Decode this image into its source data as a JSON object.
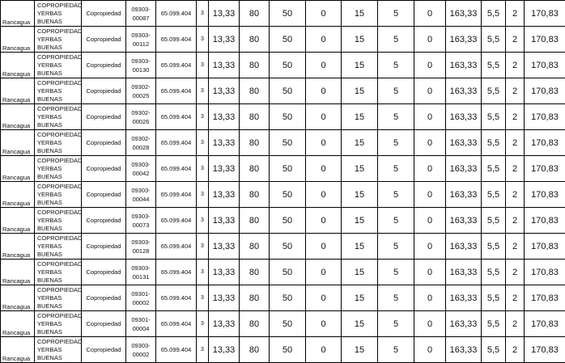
{
  "rows": [
    {
      "comuna": "Rancagua",
      "nombre": "COPROPIEDAD YERBAS BUENAS",
      "tipo": "Copropiedad",
      "rol": "09303-00087",
      "avaluo": "65.099.404",
      "n": "3",
      "v": [
        "13,33",
        "80",
        "50",
        "0",
        "15",
        "5",
        "0",
        "163,33",
        "5,5",
        "2",
        "170,83"
      ]
    },
    {
      "comuna": "Rancagua",
      "nombre": "COPROPIEDAD YERBAS BUENAS",
      "tipo": "Copropiedad",
      "rol": "09303-00112",
      "avaluo": "65.099.404",
      "n": "3",
      "v": [
        "13,33",
        "80",
        "50",
        "0",
        "15",
        "5",
        "0",
        "163,33",
        "5,5",
        "2",
        "170,83"
      ]
    },
    {
      "comuna": "Rancagua",
      "nombre": "COPROPIEDAD YERBAS BUENAS",
      "tipo": "Copropiedad",
      "rol": "09303-00130",
      "avaluo": "65.099.404",
      "n": "3",
      "v": [
        "13,33",
        "80",
        "50",
        "0",
        "15",
        "5",
        "0",
        "163,33",
        "5,5",
        "2",
        "170,83"
      ]
    },
    {
      "comuna": "Rancagua",
      "nombre": "COPROPIEDAD YERBAS BUENAS",
      "tipo": "Copropiedad",
      "rol": "09302-00025",
      "avaluo": "65.099.404",
      "n": "3",
      "v": [
        "13,33",
        "80",
        "50",
        "0",
        "15",
        "5",
        "0",
        "163,33",
        "5,5",
        "2",
        "170,83"
      ]
    },
    {
      "comuna": "Rancagua",
      "nombre": "COPROPIEDAD YERBAS BUENAS",
      "tipo": "Copropiedad",
      "rol": "09302-00026",
      "avaluo": "65.099.404",
      "n": "3",
      "v": [
        "13,33",
        "80",
        "50",
        "0",
        "15",
        "5",
        "0",
        "163,33",
        "5,5",
        "2",
        "170,83"
      ]
    },
    {
      "comuna": "Rancagua",
      "nombre": "COPROPIEDAD YERBAS BUENAS",
      "tipo": "Copropiedad",
      "rol": "09302-00028",
      "avaluo": "65.099.404",
      "n": "3",
      "v": [
        "13,33",
        "80",
        "50",
        "0",
        "15",
        "5",
        "0",
        "163,33",
        "5,5",
        "2",
        "170,83"
      ]
    },
    {
      "comuna": "Rancagua",
      "nombre": "COPROPIEDAD YERBAS BUENAS",
      "tipo": "Copropiedad",
      "rol": "09303-00042",
      "avaluo": "65.099.404",
      "n": "3",
      "v": [
        "13,33",
        "80",
        "50",
        "0",
        "15",
        "5",
        "0",
        "163,33",
        "5,5",
        "2",
        "170,83"
      ]
    },
    {
      "comuna": "Rancagua",
      "nombre": "COPROPIEDAD YERBAS BUENAS",
      "tipo": "Copropiedad",
      "rol": "09303-00044",
      "avaluo": "65.099.404",
      "n": "3",
      "v": [
        "13,33",
        "80",
        "50",
        "0",
        "15",
        "5",
        "0",
        "163,33",
        "5,5",
        "2",
        "170,83"
      ]
    },
    {
      "comuna": "Rancagua",
      "nombre": "COPROPIEDAD YERBAS BUENAS",
      "tipo": "Copropiedad",
      "rol": "09303-00073",
      "avaluo": "65.099.404",
      "n": "3",
      "v": [
        "13,33",
        "80",
        "50",
        "0",
        "15",
        "5",
        "0",
        "163,33",
        "5,5",
        "2",
        "170,83"
      ]
    },
    {
      "comuna": "Rancagua",
      "nombre": "COPROPIEDAD YERBAS BUENAS",
      "tipo": "Copropiedad",
      "rol": "09303-00128",
      "avaluo": "65.099.404",
      "n": "3",
      "v": [
        "13,33",
        "80",
        "50",
        "0",
        "15",
        "5",
        "0",
        "163,33",
        "5,5",
        "2",
        "170,83"
      ]
    },
    {
      "comuna": "Rancagua",
      "nombre": "COPROPIEDAD YERBAS BUENAS",
      "tipo": "Copropiedad",
      "rol": "09303-00131",
      "avaluo": "65.099.404",
      "n": "3",
      "v": [
        "13,33",
        "80",
        "50",
        "0",
        "15",
        "5",
        "0",
        "163,33",
        "5,5",
        "2",
        "170,83"
      ]
    },
    {
      "comuna": "Rancagua",
      "nombre": "COPROPIEDAD YERBAS BUENAS",
      "tipo": "Copropiedad",
      "rol": "09301-00002",
      "avaluo": "65.099.404",
      "n": "3",
      "v": [
        "13,33",
        "80",
        "50",
        "0",
        "15",
        "5",
        "0",
        "163,33",
        "5,5",
        "2",
        "170,83"
      ]
    },
    {
      "comuna": "Rancagua",
      "nombre": "COPROPIEDAD YERBAS BUENAS",
      "tipo": "Copropiedad",
      "rol": "09301-00004",
      "avaluo": "65.099.404",
      "n": "3",
      "v": [
        "13,33",
        "80",
        "50",
        "0",
        "15",
        "5",
        "0",
        "163,33",
        "5,5",
        "2",
        "170,83"
      ]
    },
    {
      "comuna": "Rancagua",
      "nombre": "COPROPIEDAD YERBAS BUENAS",
      "tipo": "Copropiedad",
      "rol": "09303-00002",
      "avaluo": "65.099.404",
      "n": "3",
      "v": [
        "13,33",
        "80",
        "50",
        "0",
        "15",
        "5",
        "0",
        "163,33",
        "5,5",
        "2",
        "170,83"
      ]
    }
  ]
}
